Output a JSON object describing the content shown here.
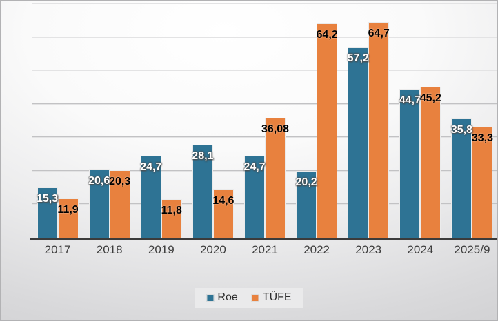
{
  "chart_data": {
    "type": "bar",
    "title": "",
    "xlabel": "",
    "ylabel": "",
    "categories": [
      "2017",
      "2018",
      "2019",
      "2020",
      "2021",
      "2022",
      "2023",
      "2024",
      "2025/9"
    ],
    "series": [
      {
        "name": "Roe",
        "color": "#2e7394",
        "values": [
          15.3,
          20.6,
          24.7,
          28.1,
          24.7,
          20.2,
          57.2,
          44.7,
          35.8
        ],
        "labels": [
          "15,3",
          "20,6",
          "24,7",
          "28,1",
          "24,7",
          "20,2",
          "57,2",
          "44,7",
          "35,8"
        ]
      },
      {
        "name": "TÜFE",
        "color": "#e8813e",
        "values": [
          11.9,
          20.3,
          11.8,
          14.6,
          36.08,
          64.2,
          64.7,
          45.2,
          33.3
        ],
        "labels": [
          "11,9",
          "20,3",
          "11,8",
          "14,6",
          "36,08",
          "64,2",
          "64,7",
          "45,2",
          "33,3"
        ]
      }
    ],
    "ylim": [
      0,
      70
    ],
    "grid_interval": 10,
    "grid_on": true,
    "y_tick_labels_visible": false,
    "legend_position": "bottom-center",
    "axis_line_color": "#3b3b3b",
    "gridline_color": "#c2c2c4",
    "label_colors": {
      "Roe": "#ffffff",
      "TÜFE": "#000000"
    }
  },
  "legend": {
    "items": [
      {
        "label": "Roe",
        "color": "#2e7394"
      },
      {
        "label": "TÜFE",
        "color": "#e8813e"
      }
    ]
  }
}
